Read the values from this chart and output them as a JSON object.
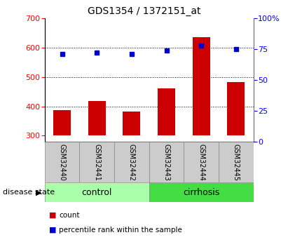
{
  "title": "GDS1354 / 1372151_at",
  "samples": [
    "GSM32440",
    "GSM32441",
    "GSM32442",
    "GSM32443",
    "GSM32444",
    "GSM32445"
  ],
  "count_values": [
    388,
    418,
    382,
    460,
    635,
    482
  ],
  "percentile_values": [
    71,
    72,
    71,
    74,
    78,
    75
  ],
  "ylim_left": [
    280,
    700
  ],
  "ylim_right": [
    0,
    100
  ],
  "yticks_left": [
    300,
    400,
    500,
    600,
    700
  ],
  "yticks_right": [
    0,
    25,
    50,
    75,
    100
  ],
  "groups": [
    {
      "label": "control",
      "indices": [
        0,
        1,
        2
      ],
      "color": "#aaffaa"
    },
    {
      "label": "cirrhosis",
      "indices": [
        3,
        4,
        5
      ],
      "color": "#44dd44"
    }
  ],
  "bar_color": "#cc0000",
  "dot_color": "#0000cc",
  "bar_bottom": 300,
  "grid_lines": [
    400,
    500,
    600
  ],
  "title_fontsize": 10,
  "tick_fontsize": 8,
  "group_label_fontsize": 9,
  "disease_state_text": "disease state",
  "legend_items": [
    {
      "label": "count",
      "color": "#cc0000"
    },
    {
      "label": "percentile rank within the sample",
      "color": "#0000cc"
    }
  ],
  "right_tick_labels": [
    "0",
    "25",
    "50",
    "75",
    "100%"
  ]
}
